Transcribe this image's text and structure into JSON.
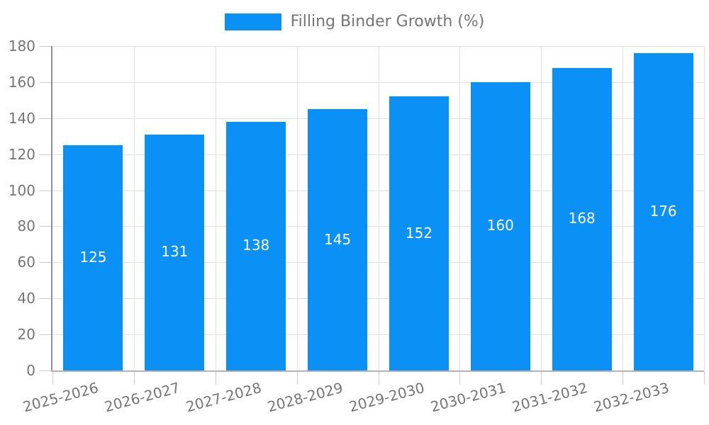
{
  "chart_data": {
    "type": "bar",
    "title": "",
    "legend": {
      "label": "Filling Binder Growth (%)",
      "position": "top-center"
    },
    "categories": [
      "2025-2026",
      "2026-2027",
      "2027-2028",
      "2028-2029",
      "2029-2030",
      "2030-2031",
      "2031-2032",
      "2032-2033"
    ],
    "values": [
      125,
      131,
      138,
      145,
      152,
      160,
      168,
      176
    ],
    "xlabel": "",
    "ylabel": "",
    "ylim": [
      0,
      180
    ],
    "ytick_interval": 20,
    "yticks": [
      0,
      20,
      40,
      60,
      80,
      100,
      120,
      140,
      160,
      180
    ],
    "grid": {
      "horizontal": true,
      "vertical": true
    },
    "value_labels": {
      "position": "inside-center",
      "color": "#ffffff"
    },
    "x_label_rotation_deg": -15,
    "colors": {
      "bar": "#0b90f5",
      "axis_text": "#757575",
      "grid_line": "#e0e0e0",
      "tick_line": "#cdcdcd",
      "y_axis_line": "#8f8f8f",
      "x_axis_line": "#b3b3b3",
      "background": "#ffffff"
    }
  }
}
